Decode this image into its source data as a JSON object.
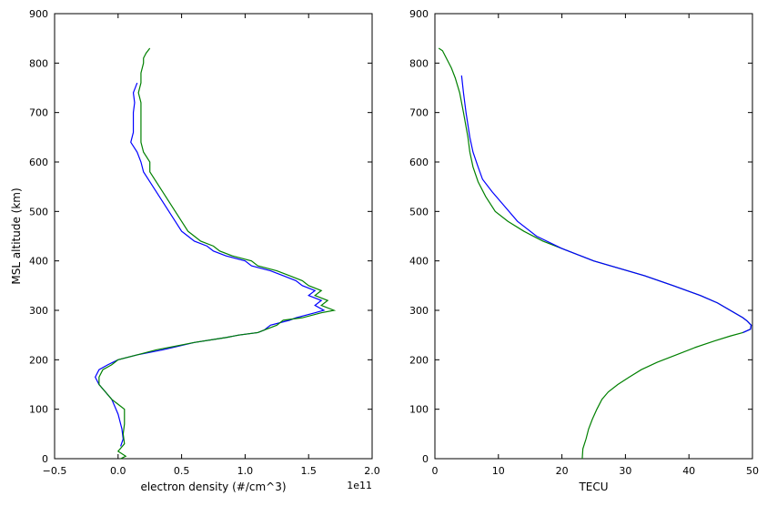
{
  "chart_data": [
    {
      "type": "line",
      "xlabel": "electron density (#/cm^3)",
      "ylabel": "MSL altitude (km)",
      "x_offset_text": "1e11",
      "xlim": [
        -0.5,
        2.0
      ],
      "ylim": [
        0,
        900
      ],
      "xticks": [
        "−0.5",
        "0.0",
        "0.5",
        "1.0",
        "1.5",
        "2.0"
      ],
      "xtick_values": [
        -0.5,
        0.0,
        0.5,
        1.0,
        1.5,
        2.0
      ],
      "yticks": [
        "0",
        "100",
        "200",
        "300",
        "400",
        "500",
        "600",
        "700",
        "800",
        "900"
      ],
      "ytick_values": [
        0,
        100,
        200,
        300,
        400,
        500,
        600,
        700,
        800,
        900
      ],
      "grid": false,
      "series": [
        {
          "color": "#0000ff",
          "points": [
            [
              0.02,
              25
            ],
            [
              0.04,
              40
            ],
            [
              0.03,
              60
            ],
            [
              0.0,
              90
            ],
            [
              -0.05,
              120
            ],
            [
              -0.1,
              135
            ],
            [
              -0.15,
              150
            ],
            [
              -0.18,
              165
            ],
            [
              -0.15,
              180
            ],
            [
              -0.08,
              190
            ],
            [
              0.0,
              200
            ],
            [
              0.15,
              210
            ],
            [
              0.35,
              220
            ],
            [
              0.6,
              235
            ],
            [
              0.85,
              245
            ],
            [
              0.95,
              250
            ],
            [
              1.1,
              255
            ],
            [
              1.15,
              260
            ],
            [
              1.2,
              270
            ],
            [
              1.35,
              280
            ],
            [
              1.4,
              285
            ],
            [
              1.55,
              295
            ],
            [
              1.62,
              300
            ],
            [
              1.55,
              310
            ],
            [
              1.6,
              320
            ],
            [
              1.5,
              330
            ],
            [
              1.55,
              340
            ],
            [
              1.45,
              350
            ],
            [
              1.4,
              360
            ],
            [
              1.3,
              370
            ],
            [
              1.2,
              380
            ],
            [
              1.05,
              390
            ],
            [
              1.0,
              400
            ],
            [
              0.85,
              410
            ],
            [
              0.75,
              420
            ],
            [
              0.7,
              430
            ],
            [
              0.6,
              440
            ],
            [
              0.55,
              450
            ],
            [
              0.5,
              460
            ],
            [
              0.45,
              480
            ],
            [
              0.4,
              500
            ],
            [
              0.35,
              520
            ],
            [
              0.3,
              540
            ],
            [
              0.25,
              560
            ],
            [
              0.2,
              580
            ],
            [
              0.18,
              600
            ],
            [
              0.15,
              620
            ],
            [
              0.1,
              640
            ],
            [
              0.12,
              660
            ],
            [
              0.12,
              680
            ],
            [
              0.12,
              700
            ],
            [
              0.13,
              720
            ],
            [
              0.12,
              740
            ],
            [
              0.15,
              760
            ]
          ]
        },
        {
          "color": "#008000",
          "points": [
            [
              0.02,
              0
            ],
            [
              0.06,
              5
            ],
            [
              0.0,
              15
            ],
            [
              0.05,
              30
            ],
            [
              0.04,
              50
            ],
            [
              0.05,
              70
            ],
            [
              0.05,
              100
            ],
            [
              -0.05,
              120
            ],
            [
              -0.1,
              135
            ],
            [
              -0.15,
              150
            ],
            [
              -0.15,
              165
            ],
            [
              -0.12,
              180
            ],
            [
              -0.05,
              190
            ],
            [
              0.0,
              200
            ],
            [
              0.15,
              210
            ],
            [
              0.3,
              220
            ],
            [
              0.6,
              235
            ],
            [
              0.85,
              245
            ],
            [
              0.95,
              250
            ],
            [
              1.1,
              255
            ],
            [
              1.15,
              260
            ],
            [
              1.25,
              270
            ],
            [
              1.3,
              280
            ],
            [
              1.45,
              285
            ],
            [
              1.6,
              295
            ],
            [
              1.7,
              300
            ],
            [
              1.6,
              310
            ],
            [
              1.65,
              320
            ],
            [
              1.55,
              330
            ],
            [
              1.6,
              340
            ],
            [
              1.5,
              350
            ],
            [
              1.45,
              360
            ],
            [
              1.35,
              370
            ],
            [
              1.25,
              380
            ],
            [
              1.1,
              390
            ],
            [
              1.05,
              400
            ],
            [
              0.9,
              410
            ],
            [
              0.8,
              420
            ],
            [
              0.75,
              430
            ],
            [
              0.65,
              440
            ],
            [
              0.6,
              450
            ],
            [
              0.55,
              460
            ],
            [
              0.5,
              480
            ],
            [
              0.45,
              500
            ],
            [
              0.4,
              520
            ],
            [
              0.35,
              540
            ],
            [
              0.3,
              560
            ],
            [
              0.25,
              580
            ],
            [
              0.25,
              600
            ],
            [
              0.2,
              620
            ],
            [
              0.18,
              640
            ],
            [
              0.18,
              660
            ],
            [
              0.18,
              680
            ],
            [
              0.18,
              700
            ],
            [
              0.18,
              720
            ],
            [
              0.16,
              740
            ],
            [
              0.18,
              760
            ],
            [
              0.18,
              780
            ],
            [
              0.2,
              800
            ],
            [
              0.2,
              810
            ],
            [
              0.22,
              820
            ],
            [
              0.25,
              830
            ]
          ]
        }
      ]
    },
    {
      "type": "line",
      "xlabel": "TECU",
      "ylabel": "",
      "xlim": [
        0,
        50
      ],
      "ylim": [
        0,
        900
      ],
      "xticks": [
        "0",
        "10",
        "20",
        "30",
        "40",
        "50"
      ],
      "xtick_values": [
        0,
        10,
        20,
        30,
        40,
        50
      ],
      "yticks": [
        "0",
        "100",
        "200",
        "300",
        "400",
        "500",
        "600",
        "700",
        "800",
        "900"
      ],
      "ytick_values": [
        0,
        100,
        200,
        300,
        400,
        500,
        600,
        700,
        800,
        900
      ],
      "grid": false,
      "series": [
        {
          "color": "#008000",
          "points": [
            [
              23.2,
              0
            ],
            [
              23.3,
              20
            ],
            [
              23.8,
              40
            ],
            [
              24.2,
              60
            ],
            [
              24.8,
              80
            ],
            [
              25.5,
              100
            ],
            [
              26.3,
              120
            ],
            [
              27.3,
              135
            ],
            [
              28.8,
              150
            ],
            [
              30.6,
              165
            ],
            [
              32.5,
              180
            ],
            [
              35,
              195
            ],
            [
              38,
              210
            ],
            [
              41,
              225
            ],
            [
              44,
              238
            ],
            [
              46.5,
              248
            ],
            [
              48.5,
              255
            ],
            [
              49.7,
              262
            ],
            [
              49.8,
              270
            ],
            [
              49.2,
              278
            ],
            [
              48.5,
              285
            ],
            [
              46.5,
              300
            ],
            [
              44.5,
              315
            ],
            [
              41.8,
              330
            ],
            [
              37.5,
              350
            ],
            [
              33,
              370
            ],
            [
              29,
              385
            ],
            [
              25,
              400
            ],
            [
              21,
              420
            ],
            [
              17,
              440
            ],
            [
              14,
              460
            ],
            [
              11.5,
              480
            ],
            [
              9.5,
              500
            ],
            [
              8,
              530
            ],
            [
              6.8,
              560
            ],
            [
              6,
              590
            ],
            [
              5.5,
              620
            ],
            [
              5.2,
              650
            ],
            [
              4.5,
              700
            ],
            [
              3.9,
              740
            ],
            [
              3.2,
              770
            ],
            [
              2.6,
              790
            ],
            [
              1.8,
              810
            ],
            [
              1.2,
              825
            ],
            [
              0.6,
              830
            ]
          ]
        },
        {
          "color": "#0000ff",
          "points": [
            [
              4.2,
              775
            ],
            [
              4.5,
              740
            ],
            [
              4.9,
              700
            ],
            [
              5.5,
              650
            ],
            [
              6,
              620
            ],
            [
              6.8,
              590
            ],
            [
              7.5,
              565
            ],
            [
              9,
              540
            ],
            [
              11,
              510
            ],
            [
              13,
              480
            ],
            [
              16,
              450
            ],
            [
              20,
              425
            ],
            [
              23,
              410
            ],
            [
              25,
              400
            ],
            [
              29,
              385
            ],
            [
              33,
              370
            ],
            [
              37.5,
              350
            ],
            [
              41.8,
              330
            ],
            [
              44.5,
              315
            ],
            [
              46.5,
              300
            ],
            [
              48.5,
              285
            ],
            [
              49.2,
              278
            ],
            [
              49.8,
              270
            ],
            [
              49.7,
              262
            ],
            [
              48.5,
              255
            ]
          ]
        }
      ]
    }
  ]
}
